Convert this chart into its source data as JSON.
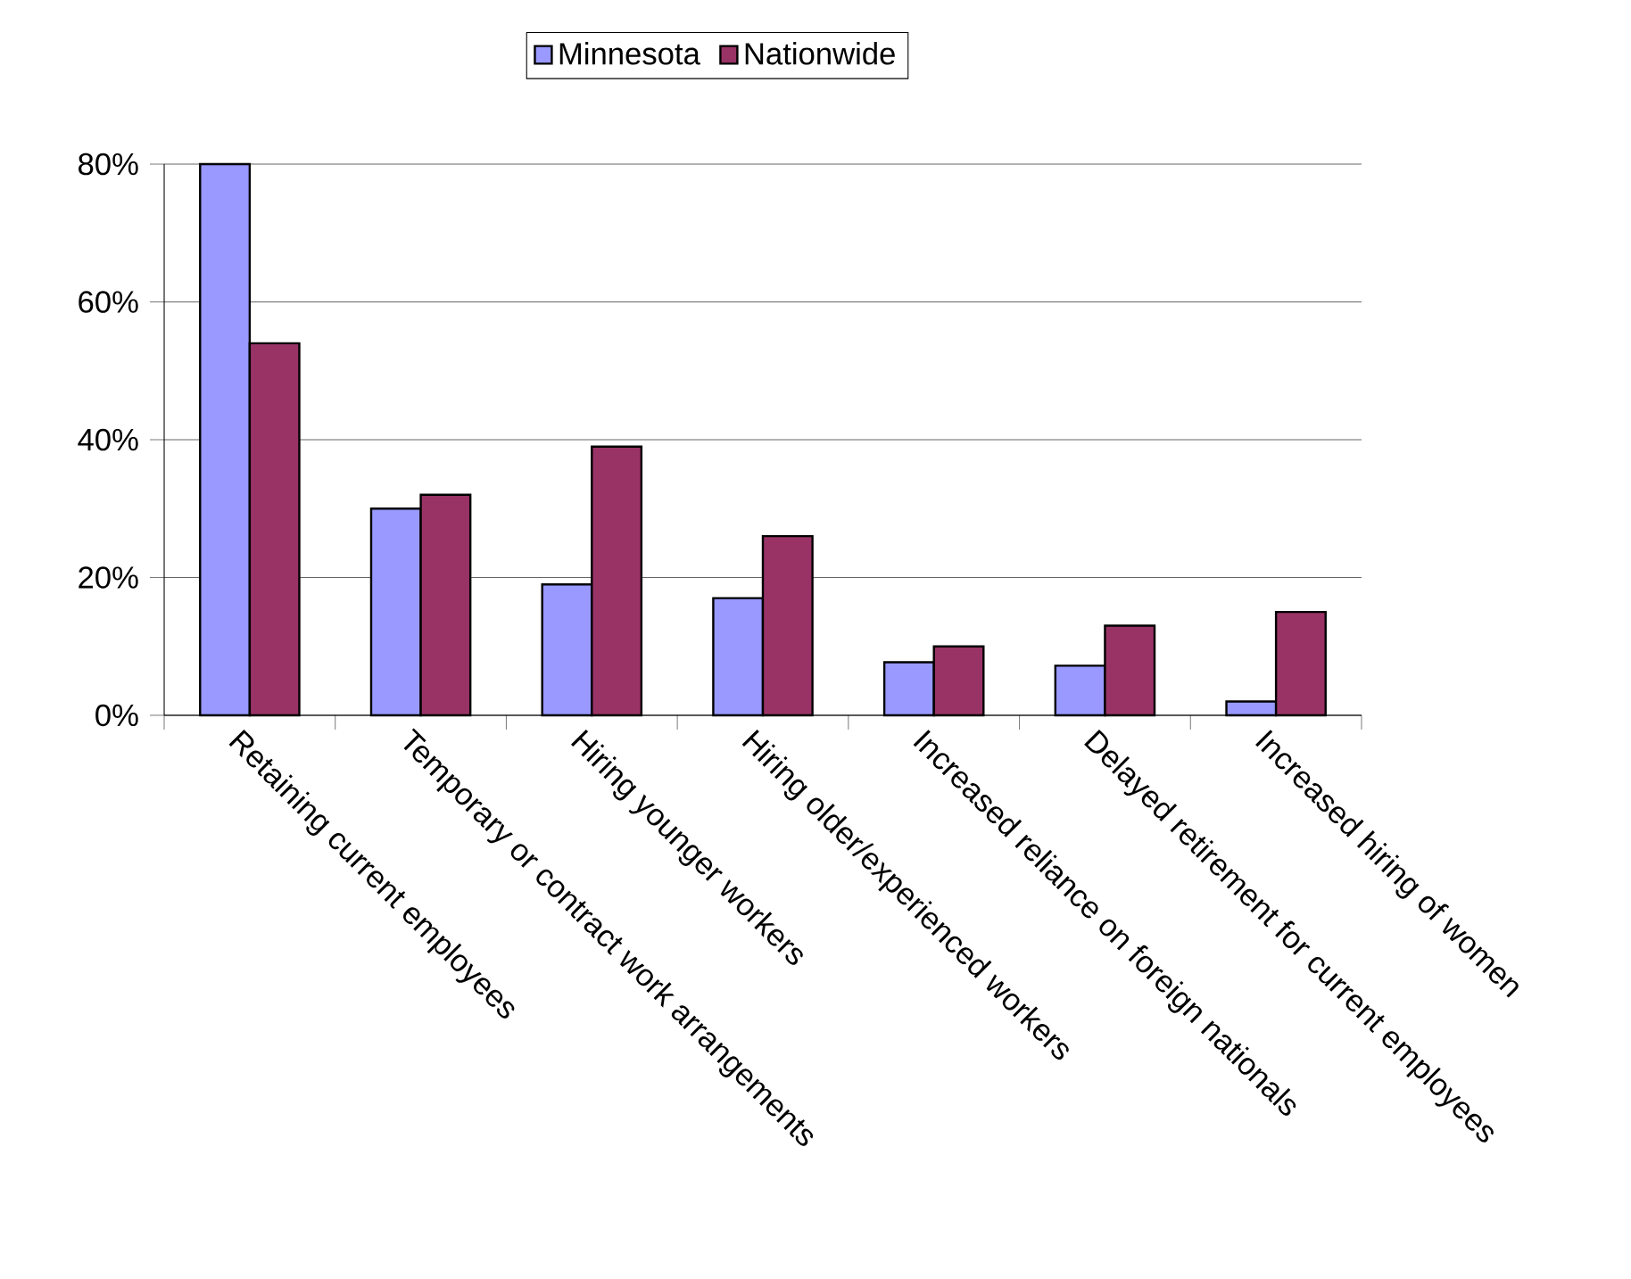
{
  "chart_data": {
    "type": "bar",
    "categories": [
      "Retaining current employees",
      "Temporary or contract work arrangements",
      "Hiring younger workers",
      "Hiring older/experienced workers",
      "Increased reliance on foreign nationals",
      "Delayed retirement for current employees",
      "Increased hiring of women"
    ],
    "series": [
      {
        "name": "Minnesota",
        "color": "#9999ff",
        "values": [
          80,
          30,
          19,
          17,
          7.7,
          7.2,
          2
        ]
      },
      {
        "name": "Nationwide",
        "color": "#993366",
        "values": [
          54,
          32,
          39,
          26,
          10,
          13,
          15
        ]
      }
    ],
    "ylim": [
      0,
      80
    ],
    "yticks": [
      {
        "value": 0,
        "label": "0%"
      },
      {
        "value": 20,
        "label": "20%"
      },
      {
        "value": 40,
        "label": "40%"
      },
      {
        "value": 60,
        "label": "60%"
      },
      {
        "value": 80,
        "label": "80%"
      }
    ],
    "grid": "y",
    "legend": "top"
  }
}
